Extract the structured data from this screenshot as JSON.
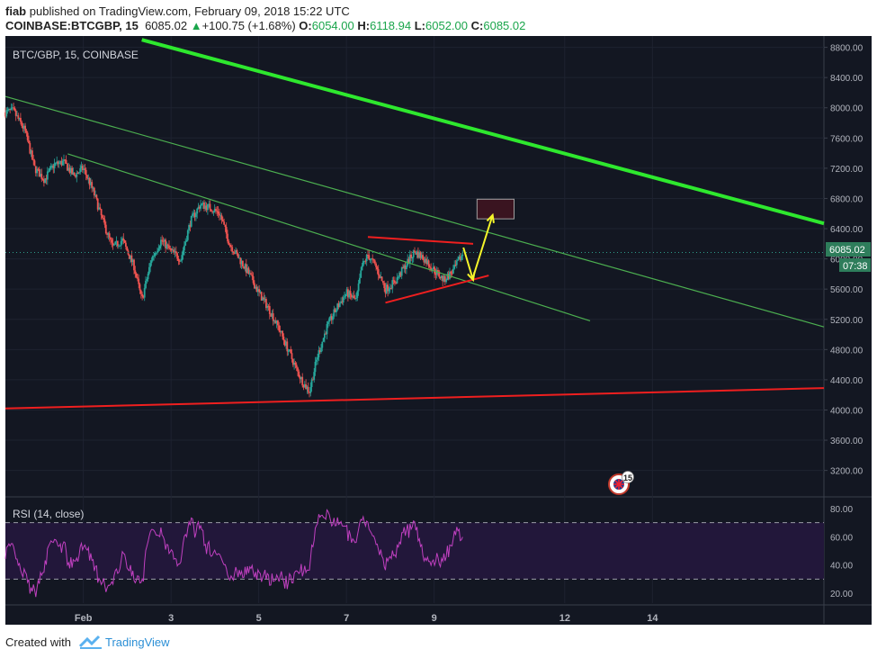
{
  "header": {
    "user": "fiab",
    "published_text": "published on TradingView.com, February 09, 2018 15:22 UTC",
    "symbol": "COINBASE:BTCGBP, 15",
    "last": "6085.02",
    "change": "+100.75 (+1.68%)",
    "o_label": "O:",
    "o_value": "6054.00",
    "h_label": "H:",
    "h_value": "6118.94",
    "l_label": "L:",
    "l_value": "6052.00",
    "c_label": "C:",
    "c_value": "6085.02"
  },
  "chart_title": "BTC/GBP, 15, COINBASE",
  "price_badge": "6085.02",
  "time_badge": "07:38",
  "rsi_label": "RSI (14, close)",
  "badge_15": "15",
  "footer": {
    "created": "Created with",
    "brand": "TradingView"
  },
  "colors": {
    "background": "#131722",
    "grid": "#1e2330",
    "axis_text": "#b2b5be",
    "up": "#26a69a",
    "down": "#ef5350",
    "trend_green": "#2ee82e",
    "channel_green": "#4caf50",
    "support_red": "#ef1f1f",
    "arrow_yellow": "#f5f52a",
    "target_box": "#3a1420",
    "rsi_line": "#c040c0",
    "rsi_band": "#22173a",
    "badge": "#2e7d5b"
  },
  "chart_data": {
    "type": "candlestick",
    "title": "BTC/GBP, 15, COINBASE",
    "x_ticks": [
      "Feb",
      "3",
      "5",
      "7",
      "9",
      "12",
      "14"
    ],
    "price_ticks": [
      8800,
      8400,
      8000,
      7600,
      7200,
      6800,
      6400,
      6000,
      5600,
      5200,
      4800,
      4400,
      4000,
      3600,
      3200
    ],
    "price_range": [
      2850,
      8950
    ],
    "last_price": 6085.02,
    "close_path": [
      {
        "t": 0.0,
        "p": 7940
      },
      {
        "t": 0.4,
        "p": 7960
      },
      {
        "t": 1.0,
        "p": 7700
      },
      {
        "t": 1.5,
        "p": 7200
      },
      {
        "t": 2.0,
        "p": 7050
      },
      {
        "t": 2.5,
        "p": 7250
      },
      {
        "t": 3.0,
        "p": 7280
      },
      {
        "t": 3.5,
        "p": 7100
      },
      {
        "t": 4.0,
        "p": 7200
      },
      {
        "t": 4.5,
        "p": 6900
      },
      {
        "t": 5.0,
        "p": 6500
      },
      {
        "t": 5.5,
        "p": 6150
      },
      {
        "t": 6.0,
        "p": 6250
      },
      {
        "t": 6.6,
        "p": 5900
      },
      {
        "t": 7.0,
        "p": 5450
      },
      {
        "t": 7.5,
        "p": 6000
      },
      {
        "t": 8.0,
        "p": 6250
      },
      {
        "t": 8.5,
        "p": 6100
      },
      {
        "t": 9.0,
        "p": 6000
      },
      {
        "t": 9.5,
        "p": 6500
      },
      {
        "t": 10.0,
        "p": 6720
      },
      {
        "t": 10.5,
        "p": 6680
      },
      {
        "t": 11.0,
        "p": 6600
      },
      {
        "t": 11.5,
        "p": 6200
      },
      {
        "t": 12.0,
        "p": 6000
      },
      {
        "t": 12.5,
        "p": 5800
      },
      {
        "t": 13.0,
        "p": 5550
      },
      {
        "t": 13.5,
        "p": 5350
      },
      {
        "t": 14.0,
        "p": 5100
      },
      {
        "t": 14.5,
        "p": 4800
      },
      {
        "t": 15.0,
        "p": 4500
      },
      {
        "t": 15.3,
        "p": 4350
      },
      {
        "t": 15.6,
        "p": 4250
      },
      {
        "t": 16.0,
        "p": 4700
      },
      {
        "t": 16.5,
        "p": 5100
      },
      {
        "t": 17.0,
        "p": 5350
      },
      {
        "t": 17.5,
        "p": 5550
      },
      {
        "t": 18.0,
        "p": 5450
      },
      {
        "t": 18.3,
        "p": 5900
      },
      {
        "t": 18.6,
        "p": 6050
      },
      {
        "t": 19.0,
        "p": 5900
      },
      {
        "t": 19.5,
        "p": 5600
      },
      {
        "t": 20.0,
        "p": 5700
      },
      {
        "t": 20.5,
        "p": 5900
      },
      {
        "t": 21.0,
        "p": 6100
      },
      {
        "t": 21.5,
        "p": 6000
      },
      {
        "t": 22.0,
        "p": 5850
      },
      {
        "t": 22.5,
        "p": 5720
      },
      {
        "t": 23.0,
        "p": 5850
      },
      {
        "t": 23.5,
        "p": 6085
      }
    ],
    "drawings": {
      "upper_trend": [
        [
          7.0,
          8900
        ],
        [
          42.0,
          6470
        ]
      ],
      "channel_top": [
        [
          0.0,
          8150
        ],
        [
          42.0,
          5100
        ]
      ],
      "channel_inner": [
        [
          3.2,
          7390
        ],
        [
          30.0,
          5180
        ]
      ],
      "support": [
        [
          0.0,
          4020
        ],
        [
          42.0,
          4290
        ]
      ],
      "triangle_top": [
        [
          18.6,
          6290
        ],
        [
          24.0,
          6200
        ]
      ],
      "triangle_bottom": [
        [
          19.5,
          5420
        ],
        [
          24.8,
          5780
        ]
      ],
      "arrow_down": [
        [
          23.5,
          6150
        ],
        [
          24.0,
          5720
        ]
      ],
      "arrow_up": [
        [
          24.0,
          5760
        ],
        [
          25.0,
          6580
        ]
      ],
      "target_box": [
        [
          24.2,
          6790
        ],
        [
          26.1,
          6530
        ]
      ]
    },
    "rsi": {
      "label": "RSI (14, close)",
      "ticks": [
        80,
        60,
        40,
        20
      ],
      "range": [
        13,
        87
      ],
      "bands": [
        70,
        30
      ]
    },
    "x_tick_positions": [
      {
        "label": "Feb",
        "t": 4.0
      },
      {
        "label": "3",
        "t": 8.5
      },
      {
        "label": "5",
        "t": 13.0
      },
      {
        "label": "7",
        "t": 17.5
      },
      {
        "label": "9",
        "t": 22.0
      },
      {
        "label": "12",
        "t": 28.7
      },
      {
        "label": "14",
        "t": 33.2
      }
    ]
  }
}
